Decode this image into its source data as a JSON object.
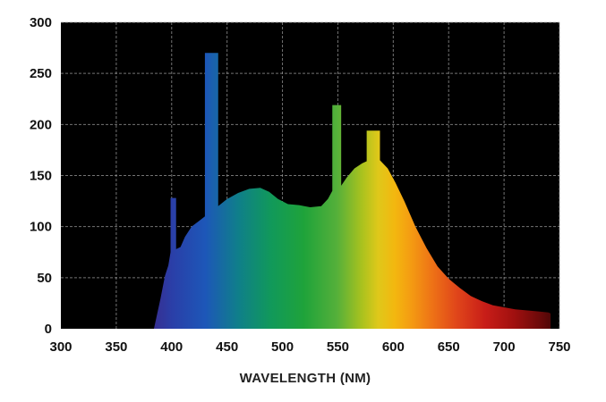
{
  "chart_data": {
    "type": "area",
    "title": "",
    "xlabel": "WAVELENGTH (NM)",
    "ylabel": "",
    "xlim": [
      300,
      750
    ],
    "ylim": [
      0,
      300
    ],
    "xticks": [
      300,
      350,
      400,
      450,
      500,
      550,
      600,
      650,
      700,
      750
    ],
    "yticks": [
      0,
      50,
      100,
      150,
      200,
      250,
      300
    ],
    "grid": true,
    "background": "#000000",
    "grid_color": "#9a9a9a",
    "fill": "visible-spectrum gradient (violet to dark red)",
    "series": [
      {
        "x": [
          384,
          386,
          390,
          394,
          397,
          399,
          399,
          404,
          404,
          408,
          412,
          418,
          424,
          430,
          430,
          442,
          442,
          450,
          460,
          470,
          480,
          488,
          496,
          505,
          515,
          525,
          535,
          541,
          545,
          545,
          553,
          553,
          558,
          565,
          572,
          576,
          576,
          588,
          588,
          595,
          602,
          610,
          620,
          630,
          640,
          650,
          660,
          670,
          680,
          690,
          700,
          710,
          720,
          730,
          740,
          742
        ],
        "y": [
          0,
          10,
          30,
          52,
          62,
          75,
          128,
          128,
          78,
          80,
          90,
          100,
          105,
          110,
          270,
          270,
          120,
          127,
          133,
          137,
          138,
          134,
          127,
          122,
          121,
          119,
          120,
          127,
          135,
          219,
          219,
          140,
          148,
          157,
          162,
          164,
          194,
          194,
          165,
          157,
          143,
          125,
          100,
          79,
          61,
          49,
          40,
          32,
          27,
          23,
          21,
          19,
          18,
          17,
          16,
          15
        ]
      }
    ]
  }
}
